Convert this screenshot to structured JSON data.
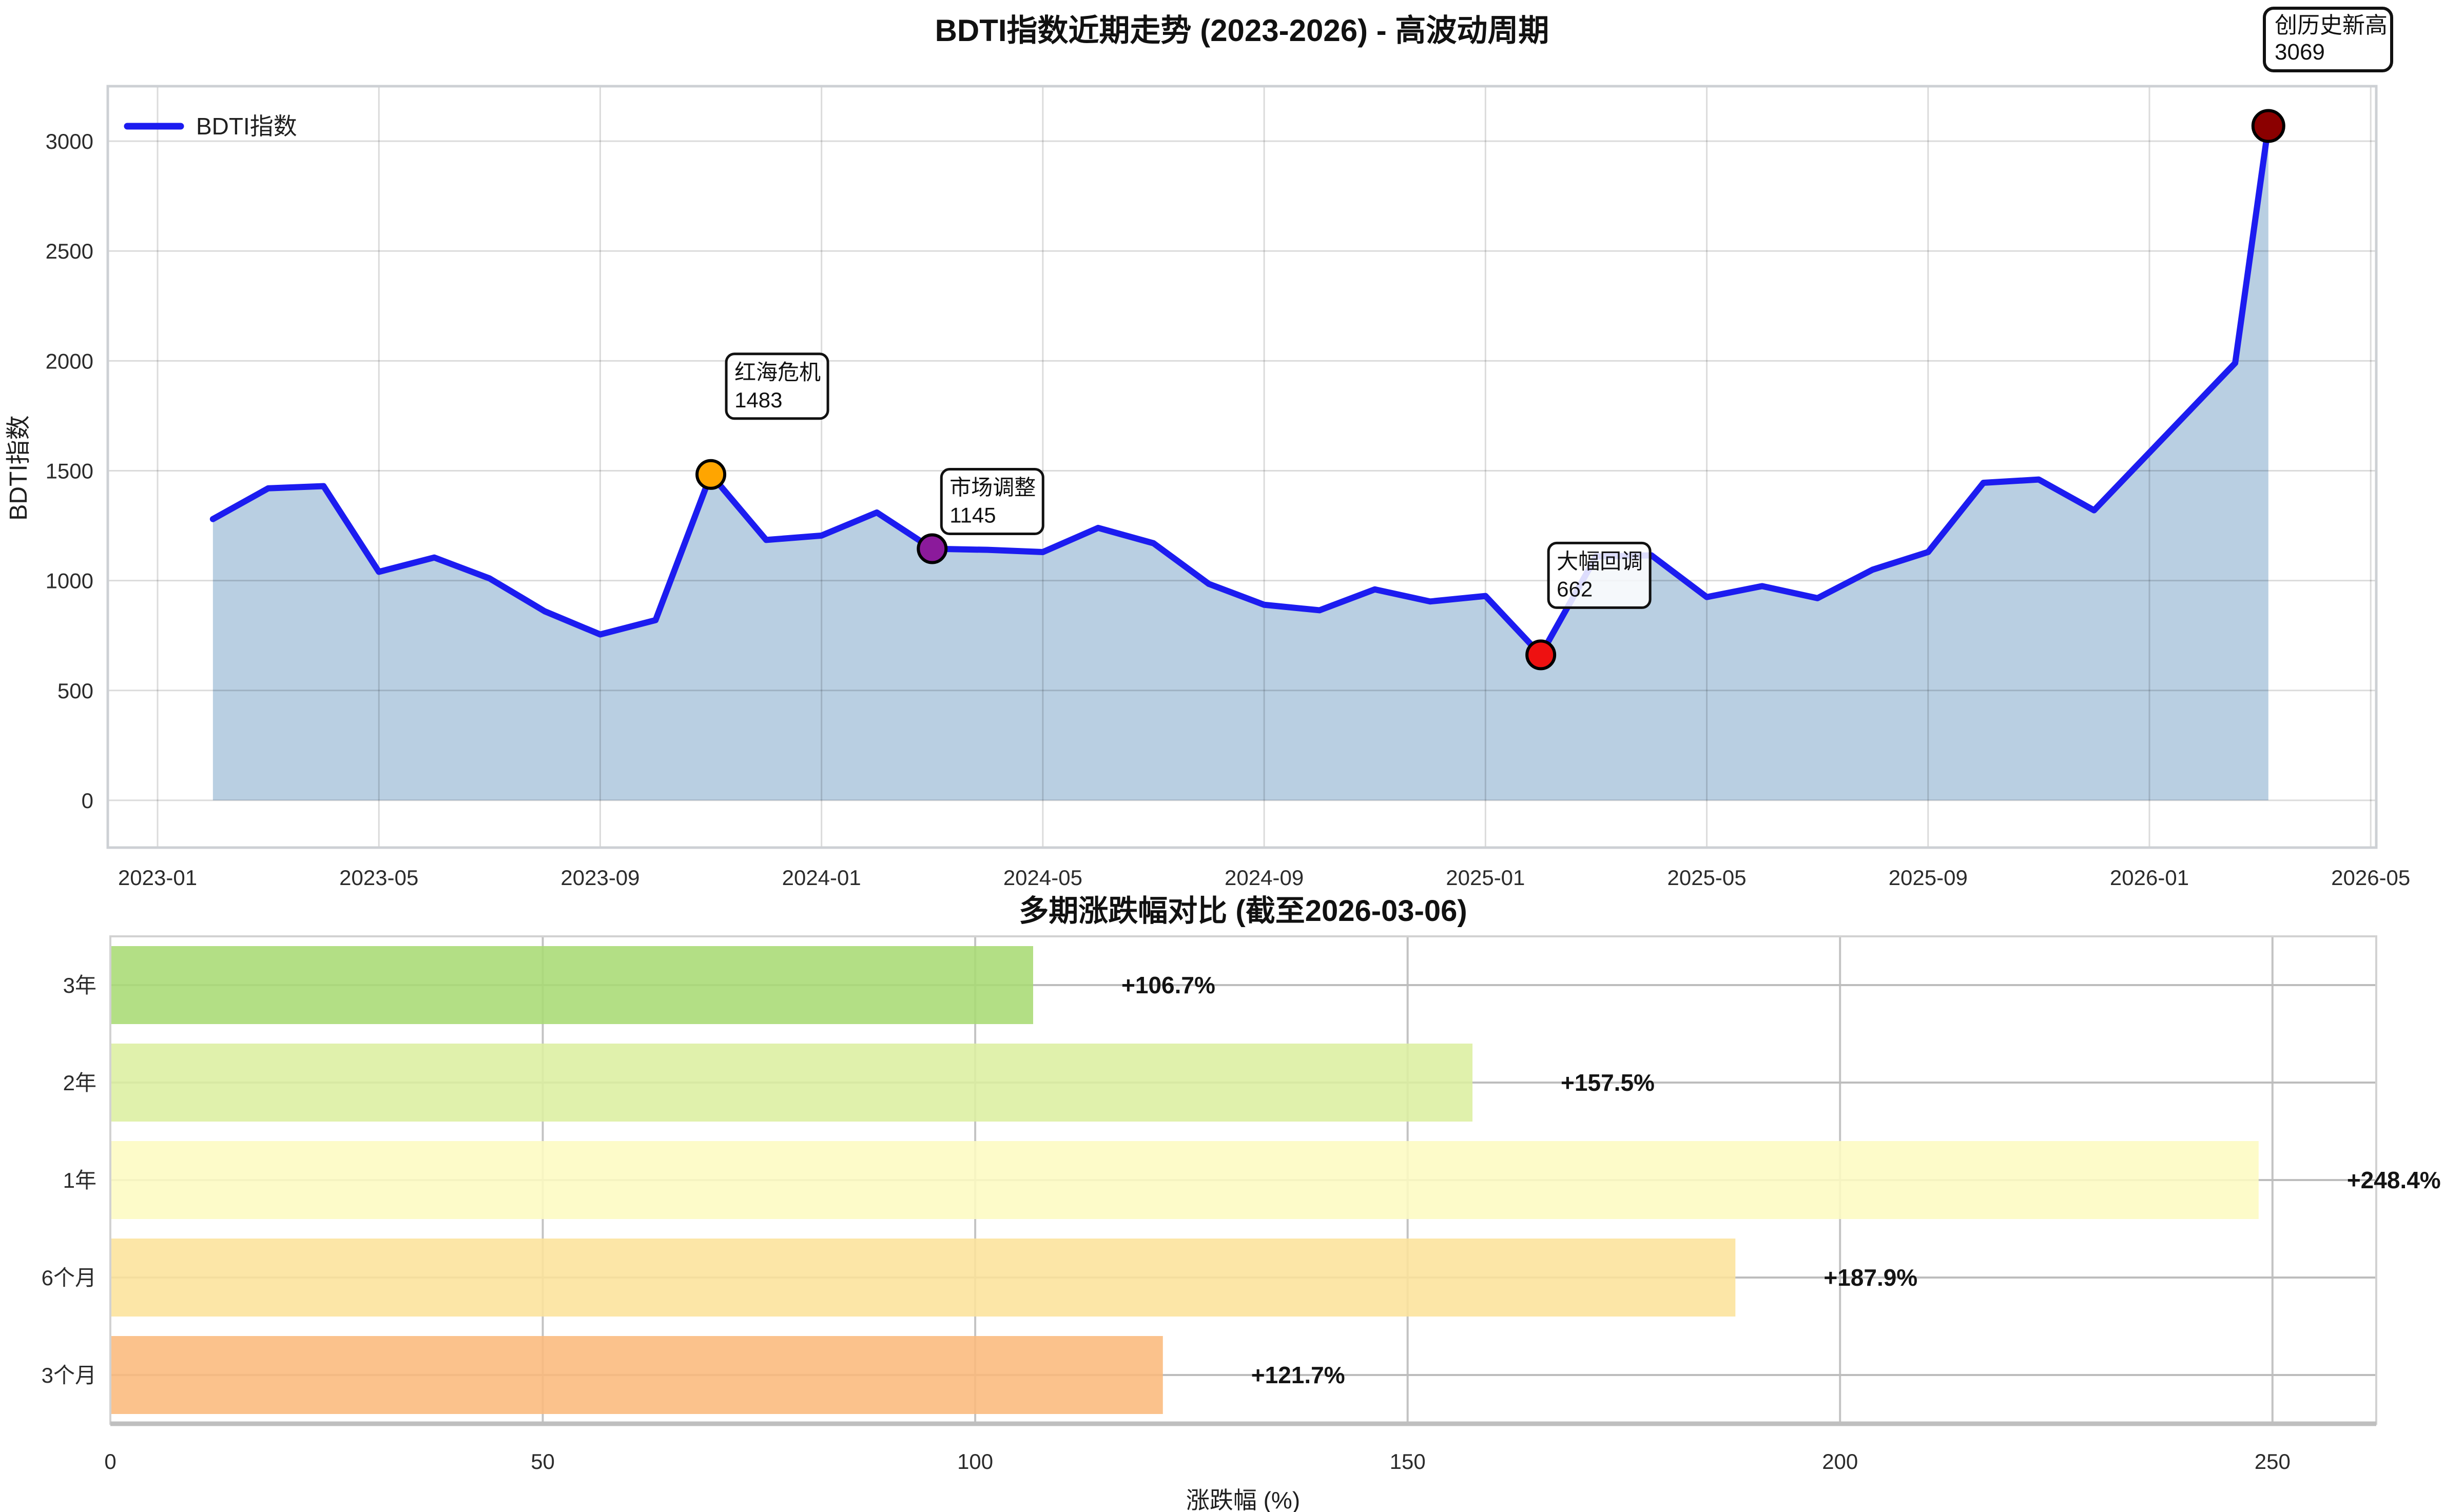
{
  "page": {
    "background": "#ffffff"
  },
  "badge": {
    "line1": "创历史新高",
    "line2": "3069"
  },
  "chart_data": [
    {
      "type": "line",
      "title": "BDTI指数近期走势 (2023-2026) - 高波动周期",
      "ylabel": "BDTI指数",
      "legend": [
        "BDTI指数"
      ],
      "legend_position": "upper left",
      "grid": true,
      "line_color": "#1C1CF0",
      "fill_color": "rgba(70,130,180,0.38)",
      "ylim": [
        -215,
        3250
      ],
      "yticks": [
        0,
        500,
        1000,
        1500,
        2000,
        2500,
        3000
      ],
      "xticks": [
        "2023-01",
        "2023-05",
        "2023-09",
        "2024-01",
        "2024-05",
        "2024-09",
        "2025-01",
        "2025-05",
        "2025-09",
        "2026-01",
        "2026-05"
      ],
      "x": [
        "2023-02",
        "2023-03",
        "2023-04",
        "2023-05",
        "2023-06",
        "2023-07",
        "2023-08",
        "2023-09",
        "2023-10",
        "2023-11",
        "2023-12",
        "2024-01",
        "2024-02",
        "2024-03",
        "2024-04",
        "2024-05",
        "2024-06",
        "2024-07",
        "2024-08",
        "2024-09",
        "2024-10",
        "2024-11",
        "2024-12",
        "2025-01",
        "2025-02",
        "2025-03",
        "2025-04",
        "2025-05",
        "2025-06",
        "2025-07",
        "2025-08",
        "2025-09",
        "2025-10",
        "2025-11",
        "2025-12",
        "2026-02",
        "2026-03"
      ],
      "values": [
        1280,
        1420,
        1430,
        1040,
        1105,
        1010,
        860,
        755,
        820,
        1483,
        1185,
        1205,
        1310,
        1145,
        1140,
        1130,
        1240,
        1170,
        985,
        890,
        865,
        960,
        905,
        930,
        662,
        1110,
        1115,
        925,
        975,
        920,
        1050,
        1130,
        1445,
        1460,
        1320,
        1990,
        3069
      ],
      "annotations": [
        {
          "label": "红海危机",
          "value": 1483,
          "x": "2023-11",
          "marker_color": "#FFA500"
        },
        {
          "label": "市场调整",
          "value": 1145,
          "x": "2024-03",
          "marker_color": "#8B1A9B"
        },
        {
          "label": "大幅回调",
          "value": 662,
          "x": "2025-02",
          "marker_color": "#EE1111"
        },
        {
          "label": "创历史新高",
          "value": 3069,
          "x": "2026-03",
          "marker_color": "#8B0000",
          "style": "badge"
        }
      ]
    },
    {
      "type": "bar",
      "orientation": "horizontal",
      "title": "多期涨跌幅对比 (截至2026-03-06)",
      "xlabel": "涨跌幅 (%)",
      "categories": [
        "3年",
        "2年",
        "1年",
        "6个月",
        "3个月"
      ],
      "values": [
        106.7,
        157.5,
        248.4,
        187.9,
        121.7
      ],
      "value_labels": [
        "+106.7%",
        "+157.5%",
        "+248.4%",
        "+187.9%",
        "+121.7%"
      ],
      "bar_colors": [
        "#A9DB74",
        "#DCEFA0",
        "#FDFBC2",
        "#FCE39B",
        "#FBBA7C"
      ],
      "xticks": [
        0,
        50,
        100,
        150,
        200,
        250
      ],
      "xlim": [
        0,
        262
      ],
      "grid": true
    }
  ]
}
